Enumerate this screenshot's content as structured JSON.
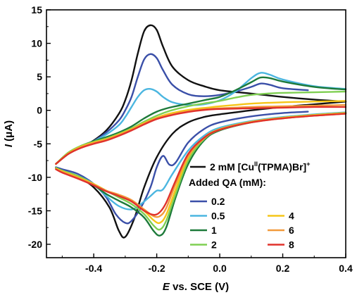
{
  "chart_data": {
    "type": "line",
    "xlabel_italic": "E",
    "xlabel_rest": " vs. SCE (V)",
    "ylabel_italic": "I",
    "ylabel_rest": " (μA)",
    "xlim": [
      -0.55,
      0.4
    ],
    "ylim": [
      -22,
      15
    ],
    "x_ticks": [
      -0.4,
      -0.2,
      0.0,
      0.2,
      0.4
    ],
    "x_tick_labels": [
      "-0.4",
      "-0.2",
      "0.0",
      "0.2",
      "0.4"
    ],
    "y_ticks": [
      15,
      10,
      5,
      0,
      -5,
      -10,
      -15,
      -20
    ],
    "y_tick_labels": [
      "15",
      "10",
      "5",
      "0",
      "-5",
      "-10",
      "-15",
      "-20"
    ],
    "legend": {
      "main_label": "2 mM [Cu",
      "main_sup": "II",
      "main_label_end": "(TPMA)Br]",
      "main_sup2": "+",
      "subtitle": "Added QA (mM):",
      "placement": "right"
    },
    "series": [
      {
        "name": "2 mM [CuII(TPMA)Br]+",
        "legend_label": "",
        "color": "#111111",
        "segments": [
          {
            "x": [
              -0.52,
              -0.48,
              -0.44,
              -0.4,
              -0.36,
              -0.32,
              -0.3,
              -0.28,
              -0.26,
              -0.24,
              -0.22,
              -0.2,
              -0.18,
              -0.15,
              -0.1,
              -0.05,
              0.0,
              0.1,
              0.2,
              0.3,
              0.4
            ],
            "y": [
              -8.0,
              -6.5,
              -5.5,
              -4.5,
              -3.0,
              -0.5,
              1.5,
              4.5,
              8.5,
              11.8,
              12.7,
              12.0,
              9.5,
              6.5,
              4.5,
              3.6,
              3.0,
              2.5,
              2.0,
              1.6,
              1.3
            ]
          },
          {
            "x": [
              0.4,
              0.3,
              0.2,
              0.1,
              0.05,
              0.0,
              -0.05,
              -0.1,
              -0.15,
              -0.2,
              -0.24,
              -0.27,
              -0.3,
              -0.32,
              -0.35,
              -0.4,
              -0.45,
              -0.5,
              -0.52
            ],
            "y": [
              1.3,
              0.9,
              0.5,
              0.0,
              -0.3,
              -0.6,
              -1.0,
              -1.8,
              -3.5,
              -7.0,
              -11.5,
              -16.0,
              -18.9,
              -18.0,
              -14.5,
              -11.5,
              -10.0,
              -9.0,
              -8.5
            ]
          }
        ]
      },
      {
        "name": "0.2",
        "legend_label": "0.2",
        "color": "#3a4fa8",
        "segments": [
          {
            "x": [
              -0.52,
              -0.48,
              -0.44,
              -0.4,
              -0.36,
              -0.32,
              -0.3,
              -0.28,
              -0.26,
              -0.24,
              -0.22,
              -0.2,
              -0.18,
              -0.15,
              -0.1,
              -0.05,
              0.0,
              0.05,
              0.1,
              0.13,
              0.16,
              0.2,
              0.28
            ],
            "y": [
              -8.0,
              -6.5,
              -5.5,
              -4.6,
              -3.3,
              -1.5,
              0.0,
              2.0,
              5.0,
              7.6,
              8.4,
              7.8,
              6.0,
              3.8,
              2.4,
              2.1,
              2.3,
              2.8,
              3.5,
              4.0,
              3.8,
              3.3,
              3.0
            ]
          },
          {
            "x": [
              0.28,
              0.2,
              0.1,
              0.0,
              -0.05,
              -0.1,
              -0.14,
              -0.16,
              -0.18,
              -0.2,
              -0.22,
              -0.25,
              -0.28,
              -0.3,
              -0.33,
              -0.36,
              -0.4,
              -0.45,
              -0.5,
              -0.52
            ],
            "y": [
              -0.2,
              -0.4,
              -0.9,
              -1.8,
              -2.8,
              -4.8,
              -7.8,
              -8.1,
              -6.8,
              -8.5,
              -11.5,
              -14.5,
              -16.5,
              -16.8,
              -15.5,
              -13.0,
              -11.0,
              -9.5,
              -8.8,
              -8.5
            ]
          }
        ]
      },
      {
        "name": "0.5",
        "legend_label": "0.5",
        "color": "#4bb6e0",
        "segments": [
          {
            "x": [
              -0.52,
              -0.48,
              -0.44,
              -0.4,
              -0.36,
              -0.32,
              -0.3,
              -0.28,
              -0.26,
              -0.24,
              -0.22,
              -0.2,
              -0.18,
              -0.15,
              -0.1,
              -0.05,
              0.0,
              0.05,
              0.1,
              0.13,
              0.16,
              0.2,
              0.3,
              0.4
            ],
            "y": [
              -8.0,
              -6.4,
              -5.4,
              -4.6,
              -3.6,
              -2.2,
              -1.0,
              0.5,
              2.0,
              3.0,
              3.2,
              2.8,
              2.0,
              1.2,
              0.8,
              0.9,
              1.5,
              2.8,
              4.8,
              5.6,
              5.3,
              4.6,
              3.6,
              3.2
            ]
          },
          {
            "x": [
              0.4,
              0.3,
              0.2,
              0.1,
              0.0,
              -0.05,
              -0.1,
              -0.15,
              -0.18,
              -0.2,
              -0.22,
              -0.25,
              -0.28,
              -0.32,
              -0.36,
              -0.4,
              -0.45,
              -0.5,
              -0.52
            ],
            "y": [
              -0.3,
              -0.6,
              -1.0,
              -1.6,
              -2.6,
              -3.8,
              -6.0,
              -9.5,
              -11.8,
              -12.0,
              -12.8,
              -14.0,
              -14.8,
              -14.3,
              -12.8,
              -11.0,
              -9.8,
              -9.0,
              -8.6
            ]
          }
        ]
      },
      {
        "name": "1",
        "legend_label": "1",
        "color": "#1d7a3a",
        "segments": [
          {
            "x": [
              -0.52,
              -0.48,
              -0.44,
              -0.4,
              -0.36,
              -0.32,
              -0.28,
              -0.24,
              -0.2,
              -0.16,
              -0.12,
              -0.08,
              -0.04,
              0.0,
              0.05,
              0.1,
              0.13,
              0.16,
              0.2,
              0.3,
              0.4
            ],
            "y": [
              -8.0,
              -6.3,
              -5.3,
              -4.6,
              -4.0,
              -3.3,
              -2.4,
              -1.2,
              -0.2,
              0.4,
              0.8,
              1.2,
              1.6,
              2.0,
              3.0,
              4.2,
              4.9,
              4.8,
              4.3,
              3.5,
              3.1
            ]
          },
          {
            "x": [
              0.4,
              0.3,
              0.2,
              0.1,
              0.0,
              -0.05,
              -0.1,
              -0.14,
              -0.17,
              -0.19,
              -0.21,
              -0.24,
              -0.28,
              -0.32,
              -0.36,
              -0.4,
              -0.45,
              -0.5,
              -0.52
            ],
            "y": [
              -0.4,
              -0.7,
              -1.1,
              -1.8,
              -3.0,
              -4.5,
              -8.0,
              -13.0,
              -17.5,
              -18.7,
              -18.0,
              -16.0,
              -14.5,
              -13.5,
              -12.5,
              -11.2,
              -10.0,
              -9.0,
              -8.6
            ]
          }
        ]
      },
      {
        "name": "2",
        "legend_label": "2",
        "color": "#7fcf52",
        "segments": [
          {
            "x": [
              -0.52,
              -0.48,
              -0.44,
              -0.4,
              -0.36,
              -0.32,
              -0.28,
              -0.24,
              -0.2,
              -0.16,
              -0.12,
              -0.08,
              -0.04,
              0.0,
              0.05,
              0.1,
              0.15,
              0.2,
              0.3,
              0.4
            ],
            "y": [
              -8.0,
              -6.3,
              -5.3,
              -4.7,
              -4.2,
              -3.5,
              -2.7,
              -1.7,
              -0.8,
              -0.1,
              0.4,
              0.8,
              1.1,
              1.4,
              1.9,
              2.3,
              2.5,
              2.6,
              2.7,
              2.8
            ]
          },
          {
            "x": [
              0.4,
              0.3,
              0.2,
              0.1,
              0.0,
              -0.05,
              -0.1,
              -0.14,
              -0.17,
              -0.19,
              -0.21,
              -0.24,
              -0.28,
              -0.32,
              -0.36,
              -0.4,
              -0.45,
              -0.5,
              -0.52
            ],
            "y": [
              -0.4,
              -0.7,
              -1.1,
              -1.8,
              -2.9,
              -4.3,
              -7.5,
              -12.5,
              -16.5,
              -17.8,
              -17.2,
              -15.5,
              -14.0,
              -13.0,
              -12.0,
              -11.0,
              -9.8,
              -9.0,
              -8.6
            ]
          }
        ]
      },
      {
        "name": "4",
        "legend_label": "4",
        "color": "#f5c518",
        "segments": [
          {
            "x": [
              -0.52,
              -0.48,
              -0.44,
              -0.4,
              -0.36,
              -0.32,
              -0.28,
              -0.24,
              -0.2,
              -0.16,
              -0.12,
              -0.08,
              -0.04,
              0.0,
              0.05,
              0.1,
              0.2,
              0.3,
              0.4
            ],
            "y": [
              -8.0,
              -6.4,
              -5.4,
              -4.8,
              -4.3,
              -3.6,
              -2.8,
              -1.9,
              -1.1,
              -0.5,
              -0.1,
              0.2,
              0.4,
              0.6,
              0.8,
              1.0,
              1.2,
              1.3,
              1.4
            ]
          },
          {
            "x": [
              0.4,
              0.3,
              0.2,
              0.1,
              0.0,
              -0.05,
              -0.1,
              -0.14,
              -0.17,
              -0.19,
              -0.21,
              -0.24,
              -0.28,
              -0.32,
              -0.36,
              -0.4,
              -0.45,
              -0.5,
              -0.52
            ],
            "y": [
              -0.4,
              -0.7,
              -1.1,
              -1.7,
              -2.8,
              -4.1,
              -7.0,
              -11.8,
              -15.6,
              -16.8,
              -16.4,
              -15.0,
              -13.6,
              -12.8,
              -12.0,
              -11.0,
              -10.0,
              -9.1,
              -8.7
            ]
          }
        ]
      },
      {
        "name": "6",
        "legend_label": "6",
        "color": "#f29a3c",
        "segments": [
          {
            "x": [
              -0.52,
              -0.48,
              -0.44,
              -0.4,
              -0.36,
              -0.32,
              -0.28,
              -0.24,
              -0.2,
              -0.16,
              -0.12,
              -0.08,
              -0.04,
              0.0,
              0.1,
              0.2,
              0.3,
              0.4
            ],
            "y": [
              -8.0,
              -6.5,
              -5.5,
              -4.9,
              -4.4,
              -3.7,
              -2.9,
              -2.0,
              -1.2,
              -0.7,
              -0.3,
              0.0,
              0.2,
              0.3,
              0.5,
              0.6,
              0.7,
              0.8
            ]
          },
          {
            "x": [
              0.4,
              0.3,
              0.2,
              0.1,
              0.0,
              -0.05,
              -0.1,
              -0.14,
              -0.17,
              -0.19,
              -0.21,
              -0.24,
              -0.28,
              -0.32,
              -0.36,
              -0.4,
              -0.45,
              -0.5,
              -0.52
            ],
            "y": [
              -0.5,
              -0.8,
              -1.2,
              -1.8,
              -2.9,
              -4.2,
              -6.8,
              -11.0,
              -14.6,
              -15.8,
              -15.8,
              -14.8,
              -13.4,
              -12.6,
              -12.0,
              -11.1,
              -10.1,
              -9.2,
              -8.8
            ]
          }
        ]
      },
      {
        "name": "8",
        "legend_label": "8",
        "color": "#e0322b",
        "segments": [
          {
            "x": [
              -0.52,
              -0.48,
              -0.44,
              -0.4,
              -0.36,
              -0.32,
              -0.28,
              -0.24,
              -0.2,
              -0.16,
              -0.12,
              -0.08,
              -0.04,
              0.0,
              0.1,
              0.2,
              0.3,
              0.4
            ],
            "y": [
              -8.0,
              -6.5,
              -5.6,
              -5.0,
              -4.5,
              -3.8,
              -3.0,
              -2.1,
              -1.3,
              -0.8,
              -0.4,
              -0.1,
              0.1,
              0.2,
              0.3,
              0.4,
              0.5,
              0.5
            ]
          },
          {
            "x": [
              0.4,
              0.3,
              0.2,
              0.1,
              0.0,
              -0.05,
              -0.1,
              -0.14,
              -0.17,
              -0.19,
              -0.21,
              -0.24,
              -0.28,
              -0.32,
              -0.36,
              -0.4,
              -0.45,
              -0.5,
              -0.52
            ],
            "y": [
              -0.5,
              -0.8,
              -1.2,
              -1.8,
              -2.9,
              -4.1,
              -6.5,
              -10.5,
              -13.8,
              -15.2,
              -15.6,
              -15.0,
              -13.6,
              -12.8,
              -12.1,
              -11.2,
              -10.2,
              -9.3,
              -8.8
            ]
          }
        ]
      }
    ]
  }
}
